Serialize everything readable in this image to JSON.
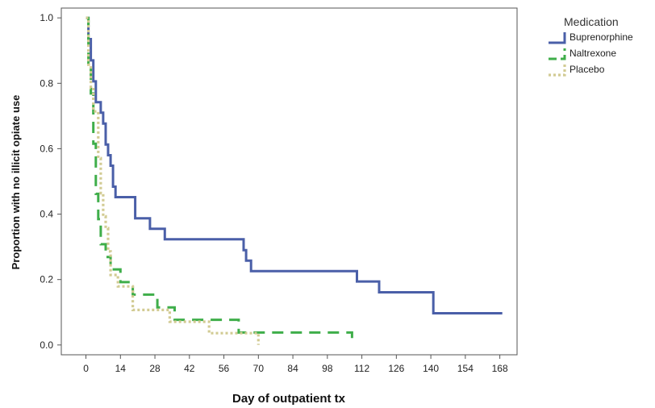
{
  "chart_data": {
    "type": "line",
    "step": true,
    "xlabel": "Day of outpatient tx",
    "ylabel": "Proportion with no illicit opiate use",
    "xlim": [
      -10,
      175
    ],
    "ylim": [
      -0.03,
      1.03
    ],
    "xticks": [
      0,
      14,
      28,
      42,
      56,
      70,
      84,
      98,
      112,
      126,
      140,
      154,
      168
    ],
    "yticks": [
      0.0,
      0.2,
      0.4,
      0.6,
      0.8,
      1.0
    ],
    "ytick_labels": [
      "0.0",
      "0.2",
      "0.4",
      "0.6",
      "0.8",
      "1.0"
    ],
    "grid": false,
    "legend": {
      "title": "Medication",
      "position": "right"
    },
    "series": [
      {
        "name": "Buprenorphine",
        "color": "#4a5fa8",
        "style": "solid",
        "x": [
          0,
          1,
          2,
          3,
          4,
          6,
          7,
          8,
          9,
          10,
          11,
          12,
          14,
          20,
          22,
          26,
          32,
          64,
          65,
          67,
          70,
          110,
          119,
          141,
          169
        ],
        "y": [
          1.0,
          0.935,
          0.87,
          0.806,
          0.742,
          0.71,
          0.677,
          0.613,
          0.58,
          0.548,
          0.484,
          0.452,
          0.452,
          0.387,
          0.387,
          0.355,
          0.323,
          0.29,
          0.258,
          0.226,
          0.226,
          0.194,
          0.161,
          0.097,
          0.097
        ]
      },
      {
        "name": "Naltrexone",
        "color": "#3fae4a",
        "style": "dashed",
        "x": [
          0,
          1,
          2,
          3,
          4,
          5,
          6,
          8,
          10,
          14,
          19,
          29,
          36,
          62,
          108
        ],
        "y": [
          1.0,
          0.846,
          0.769,
          0.615,
          0.462,
          0.385,
          0.308,
          0.269,
          0.231,
          0.192,
          0.154,
          0.115,
          0.077,
          0.038,
          0.0
        ]
      },
      {
        "name": "Placebo",
        "color": "#d2cb93",
        "style": "dotted",
        "x": [
          0,
          1,
          2,
          3,
          5,
          6,
          7,
          8,
          9,
          10,
          13,
          19,
          34,
          50,
          70
        ],
        "y": [
          1.0,
          0.857,
          0.786,
          0.714,
          0.571,
          0.464,
          0.393,
          0.357,
          0.286,
          0.214,
          0.179,
          0.107,
          0.071,
          0.036,
          0.0
        ]
      }
    ]
  }
}
